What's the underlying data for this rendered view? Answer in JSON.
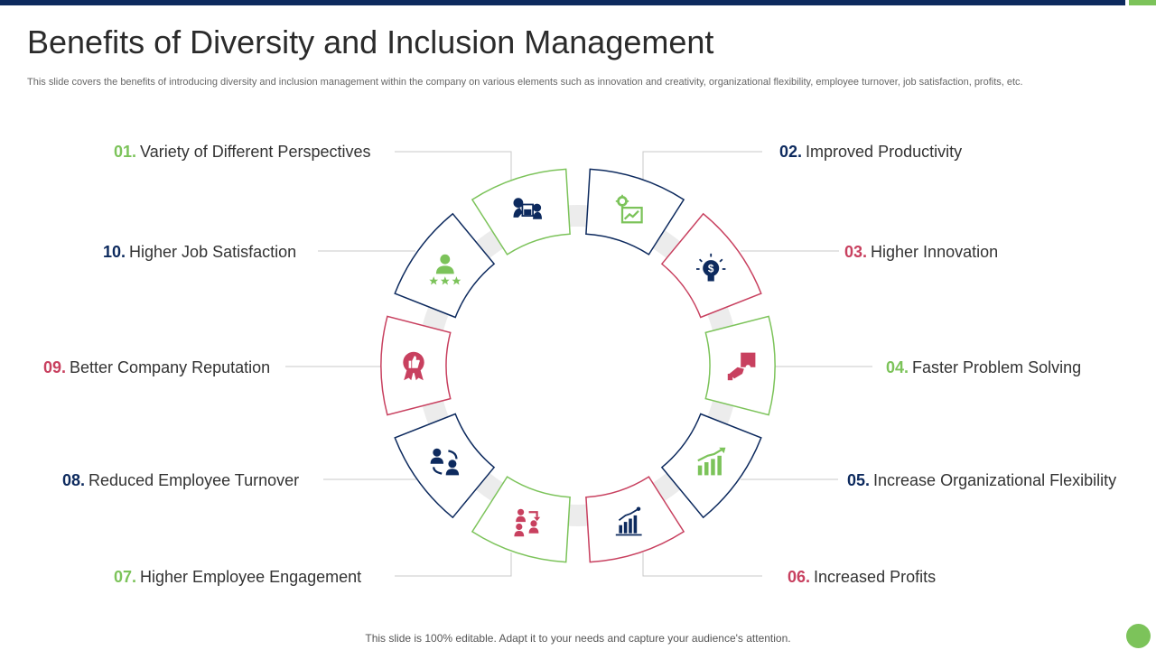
{
  "title": "Benefits of Diversity and Inclusion Management",
  "subtitle": "This slide covers the benefits of introducing diversity and inclusion management within the company on various elements such as innovation and creativity,  organizational flexibility,  employee turnover, job satisfaction, profits, etc.",
  "footer": "This slide is 100% editable. Adapt it to your needs and capture your audience's attention.",
  "colors": {
    "green": "#7cc35a",
    "navy": "#0d2a5e",
    "red": "#c8405f",
    "ring": "#ececec"
  },
  "items": [
    {
      "num": "01.",
      "label": "Variety of Different Perspectives",
      "color": "green",
      "icon": "two-heads-discussion-icon"
    },
    {
      "num": "02.",
      "label": "Improved Productivity",
      "color": "navy",
      "icon": "gear-chart-icon"
    },
    {
      "num": "03.",
      "label": "Higher Innovation",
      "color": "red",
      "icon": "dollar-lightbulb-icon"
    },
    {
      "num": "04.",
      "label": "Faster Problem Solving",
      "color": "green",
      "icon": "hand-puzzle-icon"
    },
    {
      "num": "05.",
      "label": "Increase Organizational Flexibility",
      "color": "navy",
      "icon": "growth-bars-icon"
    },
    {
      "num": "06.",
      "label": "Increased Profits",
      "color": "red",
      "icon": "profit-chart-icon"
    },
    {
      "num": "07.",
      "label": "Higher Employee Engagement",
      "color": "green",
      "icon": "people-exchange-icon"
    },
    {
      "num": "08.",
      "label": "Reduced Employee Turnover",
      "color": "navy",
      "icon": "people-cycle-icon"
    },
    {
      "num": "09.",
      "label": "Better Company Reputation",
      "color": "red",
      "icon": "badge-thumbs-up-icon"
    },
    {
      "num": "10.",
      "label": "Higher Job Satisfaction",
      "color": "navy",
      "icon": "person-stars-icon"
    }
  ]
}
